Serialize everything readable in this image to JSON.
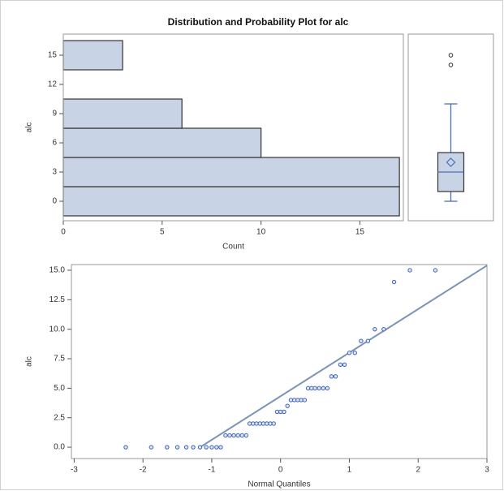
{
  "title": "Distribution and Probability Plot for alc",
  "chart_data": [
    {
      "type": "histogram",
      "orientation": "horizontal",
      "ylabel": "alc",
      "xlabel": "Count",
      "bins": [
        -1.5,
        1.5,
        4.5,
        7.5,
        10.5,
        13.5,
        16.5
      ],
      "counts": [
        17,
        17,
        10,
        6,
        0,
        3
      ],
      "color": "#c8d4e6",
      "edgecolor": "#333333",
      "xlim": [
        0,
        17.2
      ],
      "xticks": [
        0,
        5,
        10,
        15
      ],
      "ylim": [
        -2,
        17.17
      ],
      "yticks": [
        0,
        3,
        6,
        9,
        12,
        15
      ]
    },
    {
      "type": "box",
      "ylim": [
        -2,
        17.17
      ],
      "color": "#4a6fb5",
      "fill": "#c8d4e6",
      "min": 0,
      "q1": 1,
      "median": 3,
      "q3": 5,
      "max": 10,
      "mean": 4,
      "outliers": [
        14,
        15
      ]
    },
    {
      "type": "scatter",
      "ylabel": "alc",
      "xlabel": "Normal Quantiles",
      "color": "#3d63b8",
      "x": [
        -2.25,
        -1.88,
        -1.65,
        -1.5,
        -1.37,
        -1.27,
        -1.17,
        -1.08,
        -1.0,
        -0.93,
        -0.87,
        -0.8,
        -0.74,
        -0.68,
        -0.62,
        -0.56,
        -0.5,
        -0.45,
        -0.4,
        -0.35,
        -0.3,
        -0.25,
        -0.2,
        -0.15,
        -0.1,
        -0.05,
        0,
        0.05,
        0.1,
        0.15,
        0.2,
        0.25,
        0.3,
        0.35,
        0.4,
        0.45,
        0.5,
        0.56,
        0.62,
        0.68,
        0.74,
        0.8,
        0.87,
        0.93,
        1.0,
        1.08,
        1.17,
        1.27,
        1.37,
        1.5,
        1.65,
        1.88,
        2.25
      ],
      "y": [
        0,
        0,
        0,
        0,
        0,
        0,
        0,
        0,
        0,
        0,
        0,
        1,
        1,
        1,
        1,
        1,
        1,
        2,
        2,
        2,
        2,
        2,
        2,
        2,
        2,
        3,
        3,
        3,
        3.5,
        4,
        4,
        4,
        4,
        4,
        5,
        5,
        5,
        5,
        5,
        5,
        6,
        6,
        7,
        7,
        8,
        8,
        9,
        9,
        10,
        10,
        14,
        15,
        15
      ],
      "reference_line": {
        "x": [
          -1.17,
          3.0
        ],
        "y": [
          0,
          15.4
        ],
        "color": "#7a93b8"
      },
      "xlim": [
        -3.04,
        3.0
      ],
      "xticks": [
        -3,
        -2,
        -1,
        0,
        1,
        2,
        3
      ],
      "ylim": [
        -0.96,
        15.48
      ],
      "yticks": [
        {
          "value": 0,
          "label": "0.0"
        },
        {
          "value": 2.5,
          "label": "2.5"
        },
        {
          "value": 5,
          "label": "5.0"
        },
        {
          "value": 7.5,
          "label": "7.5"
        },
        {
          "value": 10,
          "label": "10.0"
        },
        {
          "value": 12.5,
          "label": "12.5"
        },
        {
          "value": 15,
          "label": "15.0"
        }
      ]
    }
  ]
}
